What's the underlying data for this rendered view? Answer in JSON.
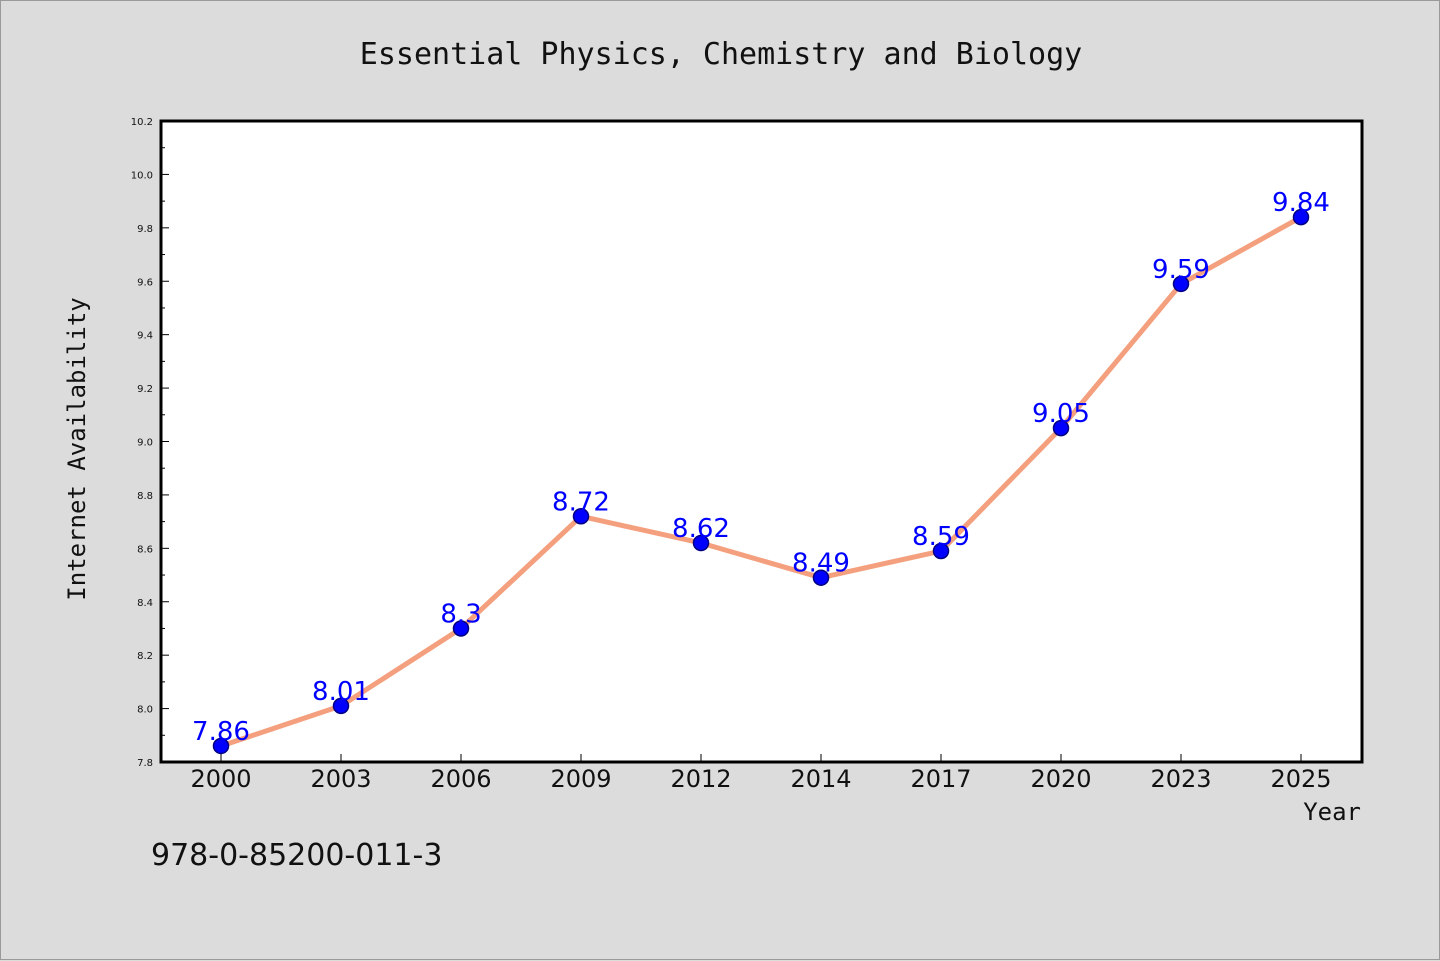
{
  "chart_data": {
    "type": "line",
    "title": "Essential Physics, Chemistry and Biology",
    "xlabel": "Year",
    "ylabel": "Internet Availability",
    "categories": [
      "2000",
      "2003",
      "2006",
      "2009",
      "2012",
      "2014",
      "2017",
      "2020",
      "2023",
      "2025"
    ],
    "series": [
      {
        "values": [
          7.86,
          8.01,
          8.3,
          8.72,
          8.62,
          8.49,
          8.59,
          9.05,
          9.59,
          9.84
        ]
      }
    ],
    "data_labels": [
      "7.86",
      "8.01",
      "8.3",
      "8.72",
      "8.62",
      "8.49",
      "8.59",
      "9.05",
      "9.59",
      "9.84"
    ],
    "yticks": [
      "7.8",
      "8.0",
      "8.2",
      "8.4",
      "8.6",
      "8.8",
      "9.0",
      "9.2",
      "9.4",
      "9.6",
      "9.8",
      "10.0",
      "10.2"
    ],
    "ylim": [
      7.8,
      10.2
    ],
    "grid": false,
    "legend": "none",
    "colors": {
      "line": "#f4a07e",
      "marker": "#0000ff",
      "marker_edge": "#000080",
      "label": "#0000ff",
      "background": "#dcdcdc",
      "plot_bg": "#ffffff"
    }
  },
  "footer": {
    "isbn": "978-0-85200-011-3"
  }
}
